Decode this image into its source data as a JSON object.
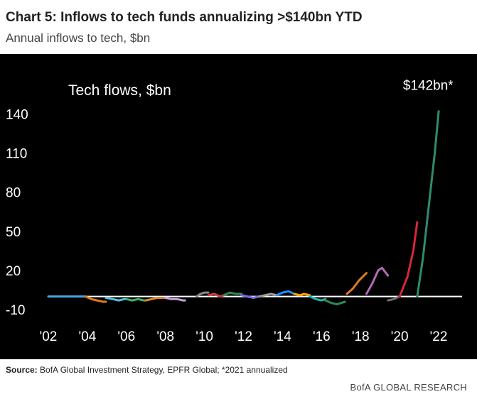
{
  "header": {
    "title": "Chart 5: Inflows to tech funds annualizing >$140bn YTD",
    "subtitle": "Annual inflows to tech, $bn"
  },
  "footer": {
    "source_label": "Source:",
    "source_text": "BofA Global Investment Strategy, EPFR Global; *2021 annualized",
    "brand": "BofA GLOBAL RESEARCH"
  },
  "chart_data": {
    "type": "line",
    "title": "Tech flows, $bn",
    "xlabel": "",
    "ylabel": "",
    "xlim": [
      2002,
      2023.2
    ],
    "ylim": [
      -10,
      150
    ],
    "yticks": [
      -10,
      20,
      50,
      80,
      110,
      140
    ],
    "xticks": [
      {
        "v": 2002,
        "label": "'02"
      },
      {
        "v": 2004,
        "label": "'04"
      },
      {
        "v": 2006,
        "label": "'06"
      },
      {
        "v": 2008,
        "label": "'08"
      },
      {
        "v": 2010,
        "label": "'10"
      },
      {
        "v": 2012,
        "label": "'12"
      },
      {
        "v": 2014,
        "label": "'14"
      },
      {
        "v": 2016,
        "label": "'16"
      },
      {
        "v": 2018,
        "label": "'18"
      },
      {
        "v": 2020,
        "label": "'20"
      },
      {
        "v": 2022,
        "label": "'22"
      }
    ],
    "zero_line": true,
    "annotation": {
      "text": "$142bn*",
      "x": 2021.9,
      "y": 142
    },
    "series": [
      {
        "color": "#4aa3df",
        "x": [
          2002,
          2002.5,
          2003,
          2003.5,
          2003.9
        ],
        "y": [
          0,
          0,
          0,
          0,
          0
        ]
      },
      {
        "color": "#e07b20",
        "x": [
          2003.9,
          2004.2,
          2004.5,
          2004.8,
          2004.95
        ],
        "y": [
          0,
          -2,
          -3,
          -4,
          -4
        ]
      },
      {
        "color": "#4fc3d9",
        "x": [
          2004.95,
          2005.3,
          2005.6,
          2005.9,
          2006.0
        ],
        "y": [
          -1,
          -2,
          -3,
          -2,
          -2
        ]
      },
      {
        "color": "#3cb371",
        "x": [
          2006.0,
          2006.3,
          2006.6,
          2006.9,
          2007.0
        ],
        "y": [
          -2,
          -3,
          -2,
          -3,
          -3
        ]
      },
      {
        "color": "#e0842a",
        "x": [
          2007.0,
          2007.3,
          2007.6,
          2007.9,
          2008.0
        ],
        "y": [
          -3,
          -2,
          -1,
          -1,
          -1
        ]
      },
      {
        "color": "#c9a0dc",
        "x": [
          2008.0,
          2008.3,
          2008.6,
          2008.9,
          2009.0
        ],
        "y": [
          -1,
          -2,
          -2,
          -3,
          -3
        ]
      },
      {
        "color": "#8c8c8c",
        "x": [
          2009.6,
          2009.8,
          2010.0,
          2010.2
        ],
        "y": [
          0,
          2,
          3,
          3
        ]
      },
      {
        "color": "#d63a3a",
        "x": [
          2010.2,
          2010.5,
          2010.8,
          2011.0
        ],
        "y": [
          1,
          2,
          0,
          1
        ]
      },
      {
        "color": "#2e8b57",
        "x": [
          2011.0,
          2011.3,
          2011.6,
          2011.9
        ],
        "y": [
          1,
          3,
          2,
          2
        ]
      },
      {
        "color": "#7b68ee",
        "x": [
          2011.9,
          2012.2,
          2012.5,
          2012.8
        ],
        "y": [
          1,
          0,
          -1,
          0
        ]
      },
      {
        "color": "#9b9b9b",
        "x": [
          2012.8,
          2013.1,
          2013.4,
          2013.7
        ],
        "y": [
          0,
          1,
          2,
          1
        ]
      },
      {
        "color": "#1e90ff",
        "x": [
          2013.7,
          2014.0,
          2014.3,
          2014.6
        ],
        "y": [
          1,
          3,
          4,
          2
        ]
      },
      {
        "color": "#ffa500",
        "x": [
          2014.6,
          2014.9,
          2015.1,
          2015.4
        ],
        "y": [
          2,
          1,
          2,
          1
        ]
      },
      {
        "color": "#20b2aa",
        "x": [
          2015.4,
          2015.7,
          2016.0,
          2016.2
        ],
        "y": [
          0,
          -2,
          -3,
          -2
        ]
      },
      {
        "color": "#2e8b57",
        "x": [
          2016.2,
          2016.5,
          2016.8,
          2017.0,
          2017.2
        ],
        "y": [
          -3,
          -5,
          -6,
          -5,
          -4
        ]
      },
      {
        "color": "#e07b20",
        "x": [
          2017.3,
          2017.6,
          2017.9,
          2018.1,
          2018.3
        ],
        "y": [
          2,
          6,
          12,
          15,
          18
        ]
      },
      {
        "color": "#b06ab3",
        "x": [
          2018.3,
          2018.6,
          2018.9,
          2019.1,
          2019.4
        ],
        "y": [
          2,
          10,
          20,
          22,
          16
        ]
      },
      {
        "color": "#6e6e6e",
        "x": [
          2019.4,
          2019.7,
          2020.0
        ],
        "y": [
          -3,
          -2,
          0
        ]
      },
      {
        "color": "#d62839",
        "x": [
          2020.0,
          2020.4,
          2020.7,
          2020.9
        ],
        "y": [
          0,
          15,
          35,
          57
        ]
      },
      {
        "color": "#2e8b6f",
        "x": [
          2020.9,
          2021.2,
          2021.5,
          2021.8,
          2022.0
        ],
        "y": [
          0,
          30,
          70,
          110,
          142
        ]
      }
    ]
  }
}
